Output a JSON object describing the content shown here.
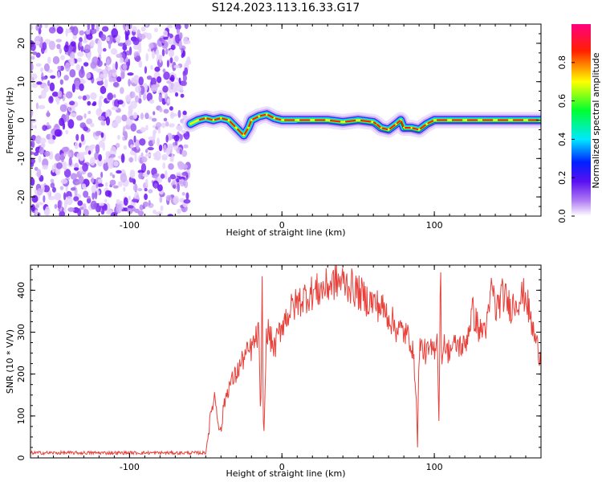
{
  "title": "S124.2023.113.16.33.G17",
  "chart_data": [
    {
      "type": "heatmap",
      "name": "spectrogram",
      "xlabel": "Height of straight line (km)",
      "ylabel": "Frequency (Hz)",
      "xlim": [
        -165,
        170
      ],
      "ylim": [
        -25,
        25
      ],
      "xticks": [
        -100,
        0,
        100
      ],
      "yticks": [
        -20,
        -10,
        0,
        10,
        20
      ],
      "noise_region_x": [
        -165,
        -60
      ],
      "ridge": {
        "x": [
          -60,
          -55,
          -50,
          -45,
          -40,
          -35,
          -30,
          -25,
          -22,
          -20,
          -15,
          -10,
          -5,
          0,
          10,
          20,
          30,
          40,
          50,
          60,
          62,
          65,
          70,
          75,
          78,
          80,
          85,
          90,
          95,
          100,
          110,
          120,
          130,
          140,
          150,
          160,
          170
        ],
        "y": [
          -1,
          0,
          0.5,
          0,
          0.5,
          0,
          -2,
          -4,
          -2,
          0,
          1,
          1.5,
          0.5,
          0,
          0,
          0,
          0,
          -0.5,
          0,
          -0.5,
          -1,
          -2,
          -2.5,
          -1,
          0,
          -2,
          -2,
          -2.5,
          -1,
          0,
          0,
          0,
          0,
          0,
          0,
          0,
          0
        ]
      },
      "colorbar": {
        "label": "Normalized spectral amplitude",
        "range": [
          0,
          1
        ],
        "ticks": [
          0.0,
          0.2,
          0.4,
          0.6,
          0.8
        ],
        "tick_labels": [
          "0.0",
          "0.2",
          "0.4",
          "0.6",
          "0.8"
        ],
        "colors": [
          "#ffffff",
          "#8f3ff0",
          "#0000ff",
          "#00e8ff",
          "#00ff00",
          "#ffff00",
          "#ff0000",
          "#ff0080"
        ]
      }
    },
    {
      "type": "line",
      "name": "snr",
      "xlabel": "Height of straight line (km)",
      "ylabel": "SNR (10 * V/V)",
      "xlim": [
        -165,
        170
      ],
      "ylim": [
        0,
        460
      ],
      "xticks": [
        -100,
        0,
        100
      ],
      "yticks": [
        0,
        100,
        200,
        300,
        400
      ],
      "color": "#e8403a",
      "series": {
        "x": [
          -165,
          -140,
          -120,
          -100,
          -80,
          -60,
          -50,
          -46,
          -44,
          -42,
          -40,
          -38,
          -35,
          -30,
          -25,
          -20,
          -15,
          -14,
          -13,
          -12,
          -10,
          -5,
          0,
          5,
          10,
          15,
          20,
          25,
          30,
          35,
          40,
          45,
          50,
          55,
          60,
          65,
          70,
          75,
          80,
          85,
          88,
          89,
          90,
          92,
          95,
          100,
          102,
          103,
          104,
          105,
          106,
          108,
          110,
          115,
          120,
          125,
          130,
          135,
          138,
          140,
          145,
          150,
          155,
          160,
          163,
          165,
          168,
          170
        ],
        "y": [
          12,
          12,
          12,
          12,
          12,
          12,
          12,
          120,
          150,
          90,
          60,
          130,
          170,
          200,
          240,
          260,
          300,
          60,
          400,
          30,
          310,
          260,
          320,
          350,
          370,
          385,
          395,
          400,
          410,
          420,
          420,
          410,
          395,
          380,
          370,
          360,
          340,
          310,
          300,
          280,
          170,
          20,
          270,
          260,
          250,
          260,
          300,
          80,
          460,
          200,
          300,
          250,
          260,
          270,
          265,
          350,
          300,
          320,
          420,
          350,
          390,
          360,
          380,
          390,
          330,
          300,
          260,
          240
        ]
      }
    }
  ]
}
